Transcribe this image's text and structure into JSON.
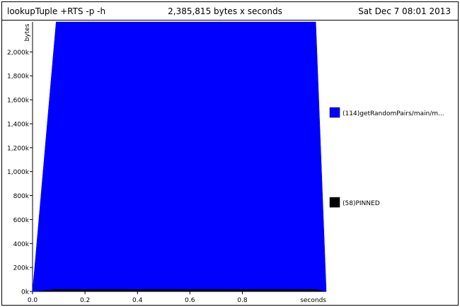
{
  "header": {
    "program": "lookupTuple +RTS -p -h",
    "total": "2,385,815 bytes x seconds",
    "date": "Sat Dec  7 08:01 2013"
  },
  "chart_data": {
    "type": "area",
    "xlabel": "seconds",
    "ylabel": "bytes",
    "xlim": [
      0,
      1.12
    ],
    "ylim": [
      0,
      2250000
    ],
    "x_ticks": [
      "0.0",
      "0.2",
      "0.4",
      "0.6",
      "0.8"
    ],
    "y_ticks": [
      "0k",
      "200k",
      "400k",
      "600k",
      "800k",
      "1,000k",
      "1,200k",
      "1,400k",
      "1,600k",
      "1,800k",
      "2,000k"
    ],
    "x": [
      0.0,
      0.09,
      1.08,
      1.12
    ],
    "series": [
      {
        "name": "(58)PINNED",
        "color": "#000000",
        "values": [
          0,
          20000,
          20000,
          0
        ]
      },
      {
        "name": "(114)getRandomPairs/main/m...",
        "color": "#0000ff",
        "values": [
          0,
          2230000,
          2230000,
          0
        ]
      }
    ],
    "legend_position": "right",
    "legend_order": [
      1,
      0
    ]
  }
}
